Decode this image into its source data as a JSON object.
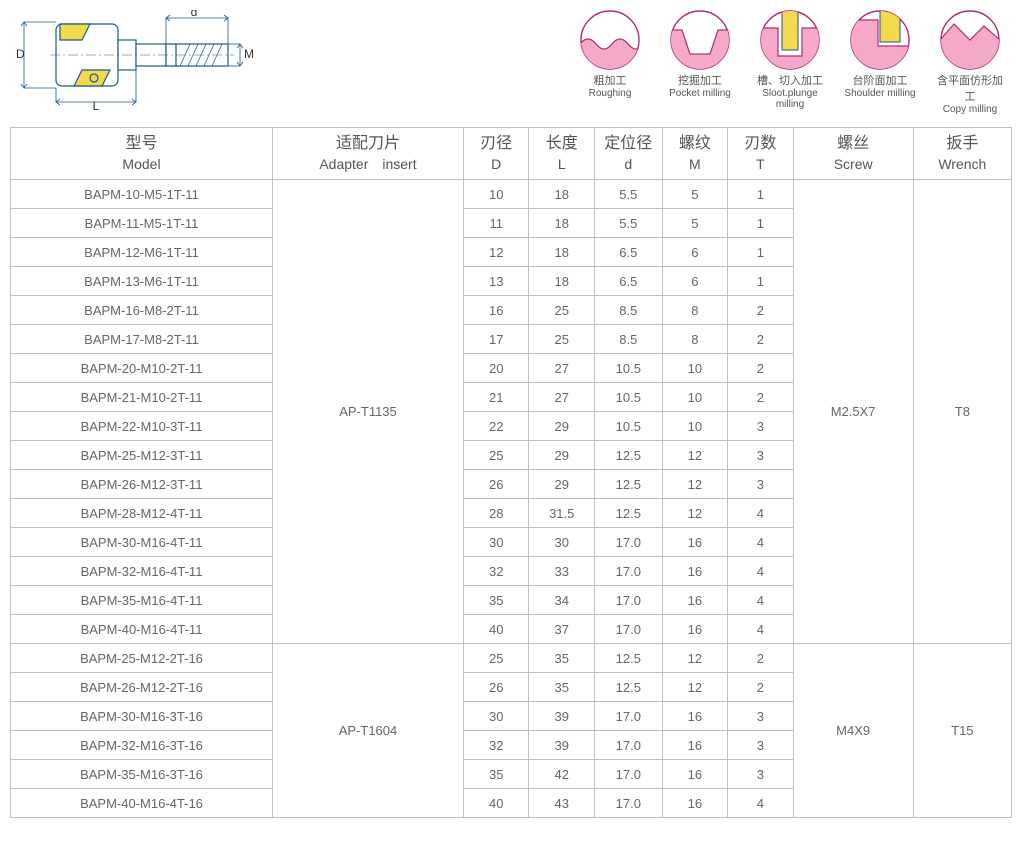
{
  "colors": {
    "border": "#bfbfbf",
    "text": "#666666",
    "header_text": "#555555",
    "pink_fill": "#f4a9c9",
    "pink_stroke": "#b74c85",
    "magenta_stroke": "#b02a7a",
    "yellow": "#f2d94e",
    "tool_body": "#ffffff",
    "tool_outline": "#1a5a8a"
  },
  "diagram_labels": {
    "D": "D",
    "L": "L",
    "d": "d",
    "M": "M"
  },
  "icons": [
    {
      "cn": "粗加工",
      "en": "Roughing"
    },
    {
      "cn": "挖掘加工",
      "en": "Pocket milling"
    },
    {
      "cn": "槽、切入加工",
      "en": "Sloot.plunge milling"
    },
    {
      "cn": "台阶面加工",
      "en": "Shoulder milling"
    },
    {
      "cn": "含平面仿形加工",
      "en": "Copy milling"
    }
  ],
  "headers": [
    {
      "cn": "型号",
      "en": "Model"
    },
    {
      "cn": "适配刀片",
      "en": "Adapter　insert"
    },
    {
      "cn": "刃径",
      "en": "D"
    },
    {
      "cn": "长度",
      "en": "L"
    },
    {
      "cn": "定位径",
      "en": "d"
    },
    {
      "cn": "螺纹",
      "en": "M"
    },
    {
      "cn": "刃数",
      "en": "T"
    },
    {
      "cn": "螺丝",
      "en": "Screw"
    },
    {
      "cn": "扳手",
      "en": "Wrench"
    }
  ],
  "groups": [
    {
      "insert": "AP-T1135",
      "screw": "M2.5X7",
      "wrench": "T8",
      "rows": [
        {
          "model": "BAPM-10-M5-1T-11",
          "D": "10",
          "L": "18",
          "d": "5.5",
          "M": "5",
          "T": "1"
        },
        {
          "model": "BAPM-11-M5-1T-11",
          "D": "11",
          "L": "18",
          "d": "5.5",
          "M": "5",
          "T": "1"
        },
        {
          "model": "BAPM-12-M6-1T-11",
          "D": "12",
          "L": "18",
          "d": "6.5",
          "M": "6",
          "T": "1"
        },
        {
          "model": "BAPM-13-M6-1T-11",
          "D": "13",
          "L": "18",
          "d": "6.5",
          "M": "6",
          "T": "1"
        },
        {
          "model": "BAPM-16-M8-2T-11",
          "D": "16",
          "L": "25",
          "d": "8.5",
          "M": "8",
          "T": "2"
        },
        {
          "model": "BAPM-17-M8-2T-11",
          "D": "17",
          "L": "25",
          "d": "8.5",
          "M": "8",
          "T": "2"
        },
        {
          "model": "BAPM-20-M10-2T-11",
          "D": "20",
          "L": "27",
          "d": "10.5",
          "M": "10",
          "T": "2"
        },
        {
          "model": "BAPM-21-M10-2T-11",
          "D": "21",
          "L": "27",
          "d": "10.5",
          "M": "10",
          "T": "2"
        },
        {
          "model": "BAPM-22-M10-3T-11",
          "D": "22",
          "L": "29",
          "d": "10.5",
          "M": "10",
          "T": "3"
        },
        {
          "model": "BAPM-25-M12-3T-11",
          "D": "25",
          "L": "29",
          "d": "12.5",
          "M": "12",
          "T": "3"
        },
        {
          "model": "BAPM-26-M12-3T-11",
          "D": "26",
          "L": "29",
          "d": "12.5",
          "M": "12",
          "T": "3"
        },
        {
          "model": "BAPM-28-M12-4T-11",
          "D": "28",
          "L": "31.5",
          "d": "12.5",
          "M": "12",
          "T": "4"
        },
        {
          "model": "BAPM-30-M16-4T-11",
          "D": "30",
          "L": "30",
          "d": "17.0",
          "M": "16",
          "T": "4"
        },
        {
          "model": "BAPM-32-M16-4T-11",
          "D": "32",
          "L": "33",
          "d": "17.0",
          "M": "16",
          "T": "4"
        },
        {
          "model": "BAPM-35-M16-4T-11",
          "D": "35",
          "L": "34",
          "d": "17.0",
          "M": "16",
          "T": "4"
        },
        {
          "model": "BAPM-40-M16-4T-11",
          "D": "40",
          "L": "37",
          "d": "17.0",
          "M": "16",
          "T": "4"
        }
      ]
    },
    {
      "insert": "AP-T1604",
      "screw": "M4X9",
      "wrench": "T15",
      "rows": [
        {
          "model": "BAPM-25-M12-2T-16",
          "D": "25",
          "L": "35",
          "d": "12.5",
          "M": "12",
          "T": "2"
        },
        {
          "model": "BAPM-26-M12-2T-16",
          "D": "26",
          "L": "35",
          "d": "12.5",
          "M": "12",
          "T": "2"
        },
        {
          "model": "BAPM-30-M16-3T-16",
          "D": "30",
          "L": "39",
          "d": "17.0",
          "M": "16",
          "T": "3"
        },
        {
          "model": "BAPM-32-M16-3T-16",
          "D": "32",
          "L": "39",
          "d": "17.0",
          "M": "16",
          "T": "3"
        },
        {
          "model": "BAPM-35-M16-3T-16",
          "D": "35",
          "L": "42",
          "d": "17.0",
          "M": "16",
          "T": "3"
        },
        {
          "model": "BAPM-40-M16-4T-16",
          "D": "40",
          "L": "43",
          "d": "17.0",
          "M": "16",
          "T": "4"
        }
      ]
    }
  ]
}
